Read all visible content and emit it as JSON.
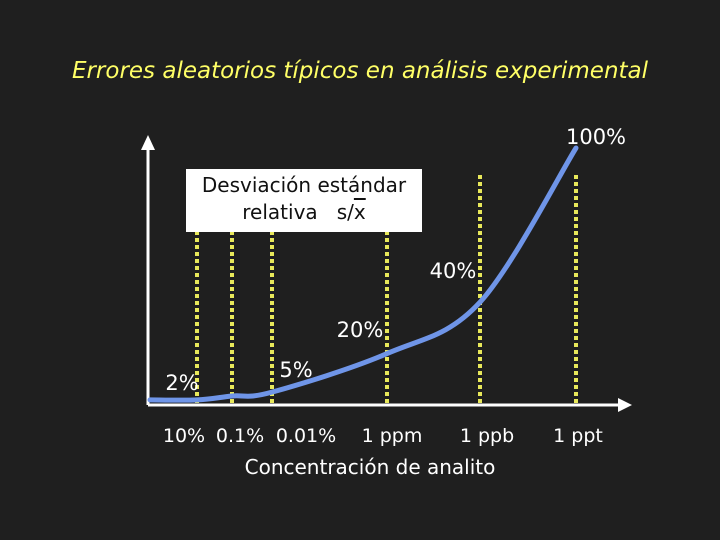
{
  "slide": {
    "title": "Errores aleatorios típicos en análisis experimental"
  },
  "chart_data": {
    "type": "line",
    "title": "Errores aleatorios típicos en análisis experimental",
    "xlabel": "Concentración de analito",
    "ylabel_line1": "Desviación estándar",
    "ylabel_line2_prefix": "relativa   s/",
    "ylabel_line2_var": "x",
    "x_tick_labels": [
      "10%",
      "0.1%",
      "0.01%",
      "1 ppm",
      "1 ppb",
      "1 ppt"
    ],
    "x_log_concentration_fraction": [
      0.1,
      0.001,
      0.0001,
      1e-06,
      1e-09,
      1e-12
    ],
    "series": [
      {
        "points": [
          {
            "x": "10%",
            "y_percent": 2
          },
          {
            "x": "0.1%",
            "y_percent": 3.5
          },
          {
            "x": "0.01%",
            "y_percent": 5
          },
          {
            "x": "1 ppm",
            "y_percent": 20
          },
          {
            "x": "1 ppb",
            "y_percent": 40
          },
          {
            "x": "1 ppt",
            "y_percent": 100
          }
        ]
      }
    ],
    "annotations": [
      {
        "text": "2%",
        "at": "10%"
      },
      {
        "text": "5%",
        "at": "0.01%"
      },
      {
        "text": "20%",
        "at": "1 ppm"
      },
      {
        "text": "40%",
        "at": "1 ppb"
      },
      {
        "text": "100%",
        "at": "1 ppt"
      }
    ],
    "colors": {
      "background": "#1f1f1f",
      "title": "#ffff66",
      "curve": "#6f95e8",
      "guides": "#e8e85a",
      "axes": "#ffffff",
      "label_box": "#ffffff"
    },
    "grid": false,
    "legend": "none"
  }
}
